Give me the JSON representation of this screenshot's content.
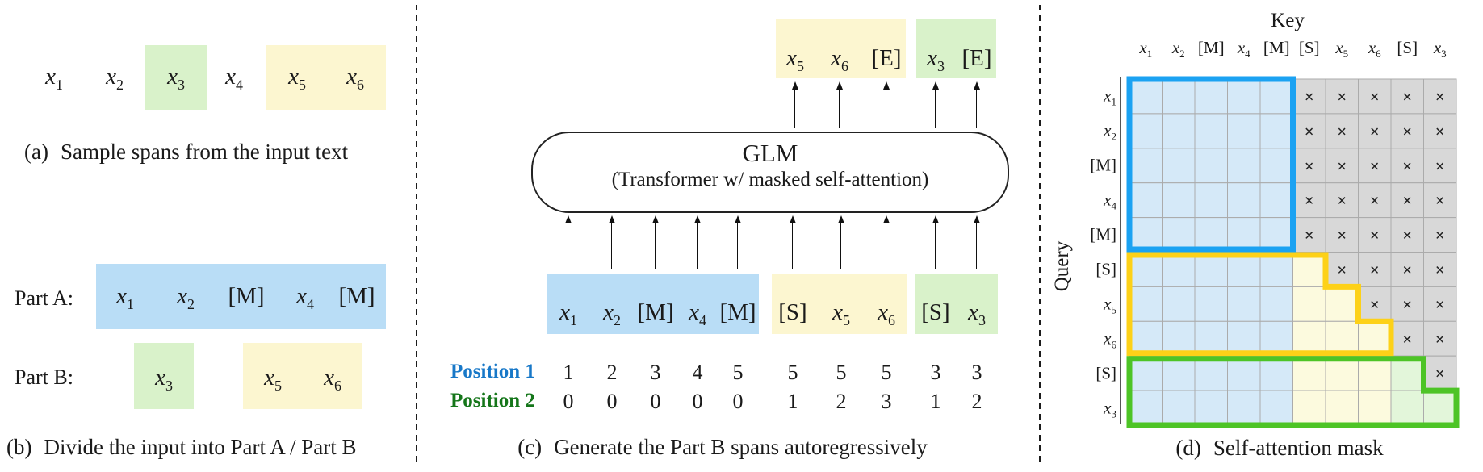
{
  "colors": {
    "highlight_blue": "#b9ddf6",
    "highlight_green": "#d9f2ca",
    "highlight_yellow": "#fcf6d0",
    "mask_blue_fill": "#d5e9f8",
    "mask_yellow_fill": "#fcfade",
    "mask_green_fill": "#e3f6da",
    "mask_gray_fill": "#d8d8d8",
    "border_blue": "#1ba2f2",
    "border_yellow": "#fdd118",
    "border_green": "#4dc426",
    "position1_color": "#1878c8",
    "position2_color": "#15761a"
  },
  "panel_a": {
    "tokens": [
      {
        "text": "x1",
        "highlight": "none"
      },
      {
        "text": "x2",
        "highlight": "none"
      },
      {
        "text": "x3",
        "highlight": "green"
      },
      {
        "text": "x4",
        "highlight": "none"
      },
      {
        "text": "x5",
        "highlight": "yellow"
      },
      {
        "text": "x6",
        "highlight": "yellow"
      }
    ],
    "caption_label": "(a)",
    "caption": "Sample spans from the input text"
  },
  "panel_b": {
    "part_a_label": "Part A:",
    "part_a_tokens": [
      {
        "text": "x1",
        "highlight": "blue"
      },
      {
        "text": "x2",
        "highlight": "blue"
      },
      {
        "text": "[M]",
        "highlight": "blue"
      },
      {
        "text": "x4",
        "highlight": "blue"
      },
      {
        "text": "[M]",
        "highlight": "blue"
      }
    ],
    "part_b_label": "Part B:",
    "part_b_tokens": [
      {
        "text": "x3",
        "highlight": "green"
      },
      {
        "text": "x5",
        "highlight": "yellow"
      },
      {
        "text": "x6",
        "highlight": "yellow"
      }
    ],
    "caption_label": "(b)",
    "caption": "Divide the input into Part A / Part B"
  },
  "panel_c": {
    "output_tokens": [
      {
        "text": "x5",
        "highlight": "yellow"
      },
      {
        "text": "x6",
        "highlight": "yellow"
      },
      {
        "text": "[E]",
        "highlight": "yellow"
      },
      {
        "text": "x3",
        "highlight": "green"
      },
      {
        "text": "[E]",
        "highlight": "green"
      }
    ],
    "model_title": "GLM",
    "model_subtitle": "(Transformer w/ masked self-attention)",
    "input_tokens": [
      {
        "text": "x1",
        "highlight": "blue"
      },
      {
        "text": "x2",
        "highlight": "blue"
      },
      {
        "text": "[M]",
        "highlight": "blue"
      },
      {
        "text": "x4",
        "highlight": "blue"
      },
      {
        "text": "[M]",
        "highlight": "blue"
      },
      {
        "text": "[S]",
        "highlight": "yellow"
      },
      {
        "text": "x5",
        "highlight": "yellow"
      },
      {
        "text": "x6",
        "highlight": "yellow"
      },
      {
        "text": "[S]",
        "highlight": "green"
      },
      {
        "text": "x3",
        "highlight": "green"
      }
    ],
    "position1_label": "Position 1",
    "position1": [
      "1",
      "2",
      "3",
      "4",
      "5",
      "5",
      "5",
      "5",
      "3",
      "3"
    ],
    "position2_label": "Position 2",
    "position2": [
      "0",
      "0",
      "0",
      "0",
      "0",
      "1",
      "2",
      "3",
      "1",
      "2"
    ],
    "caption_label": "(c)",
    "caption": "Generate the Part B spans autoregressively"
  },
  "panel_d": {
    "key_label": "Key",
    "query_label": "Query",
    "col_headers": [
      "x1",
      "x2",
      "[M]",
      "x4",
      "[M]",
      "[S]",
      "x5",
      "x6",
      "[S]",
      "x3"
    ],
    "row_headers": [
      "x1",
      "x2",
      "[M]",
      "x4",
      "[M]",
      "[S]",
      "x5",
      "x6",
      "[S]",
      "x3"
    ],
    "mask": [
      "bbbbbxxxxx",
      "bbbbbxxxxx",
      "bbbbbxxxxx",
      "bbbbbxxxxx",
      "bbbbbxxxxx",
      "bbbbbyxxxx",
      "bbbbbyyxxx",
      "bbbbbyyyxx",
      "bbbbbyyygx",
      "bbbbbyyygg"
    ],
    "caption_label": "(d)",
    "caption": "Self-attention mask"
  }
}
